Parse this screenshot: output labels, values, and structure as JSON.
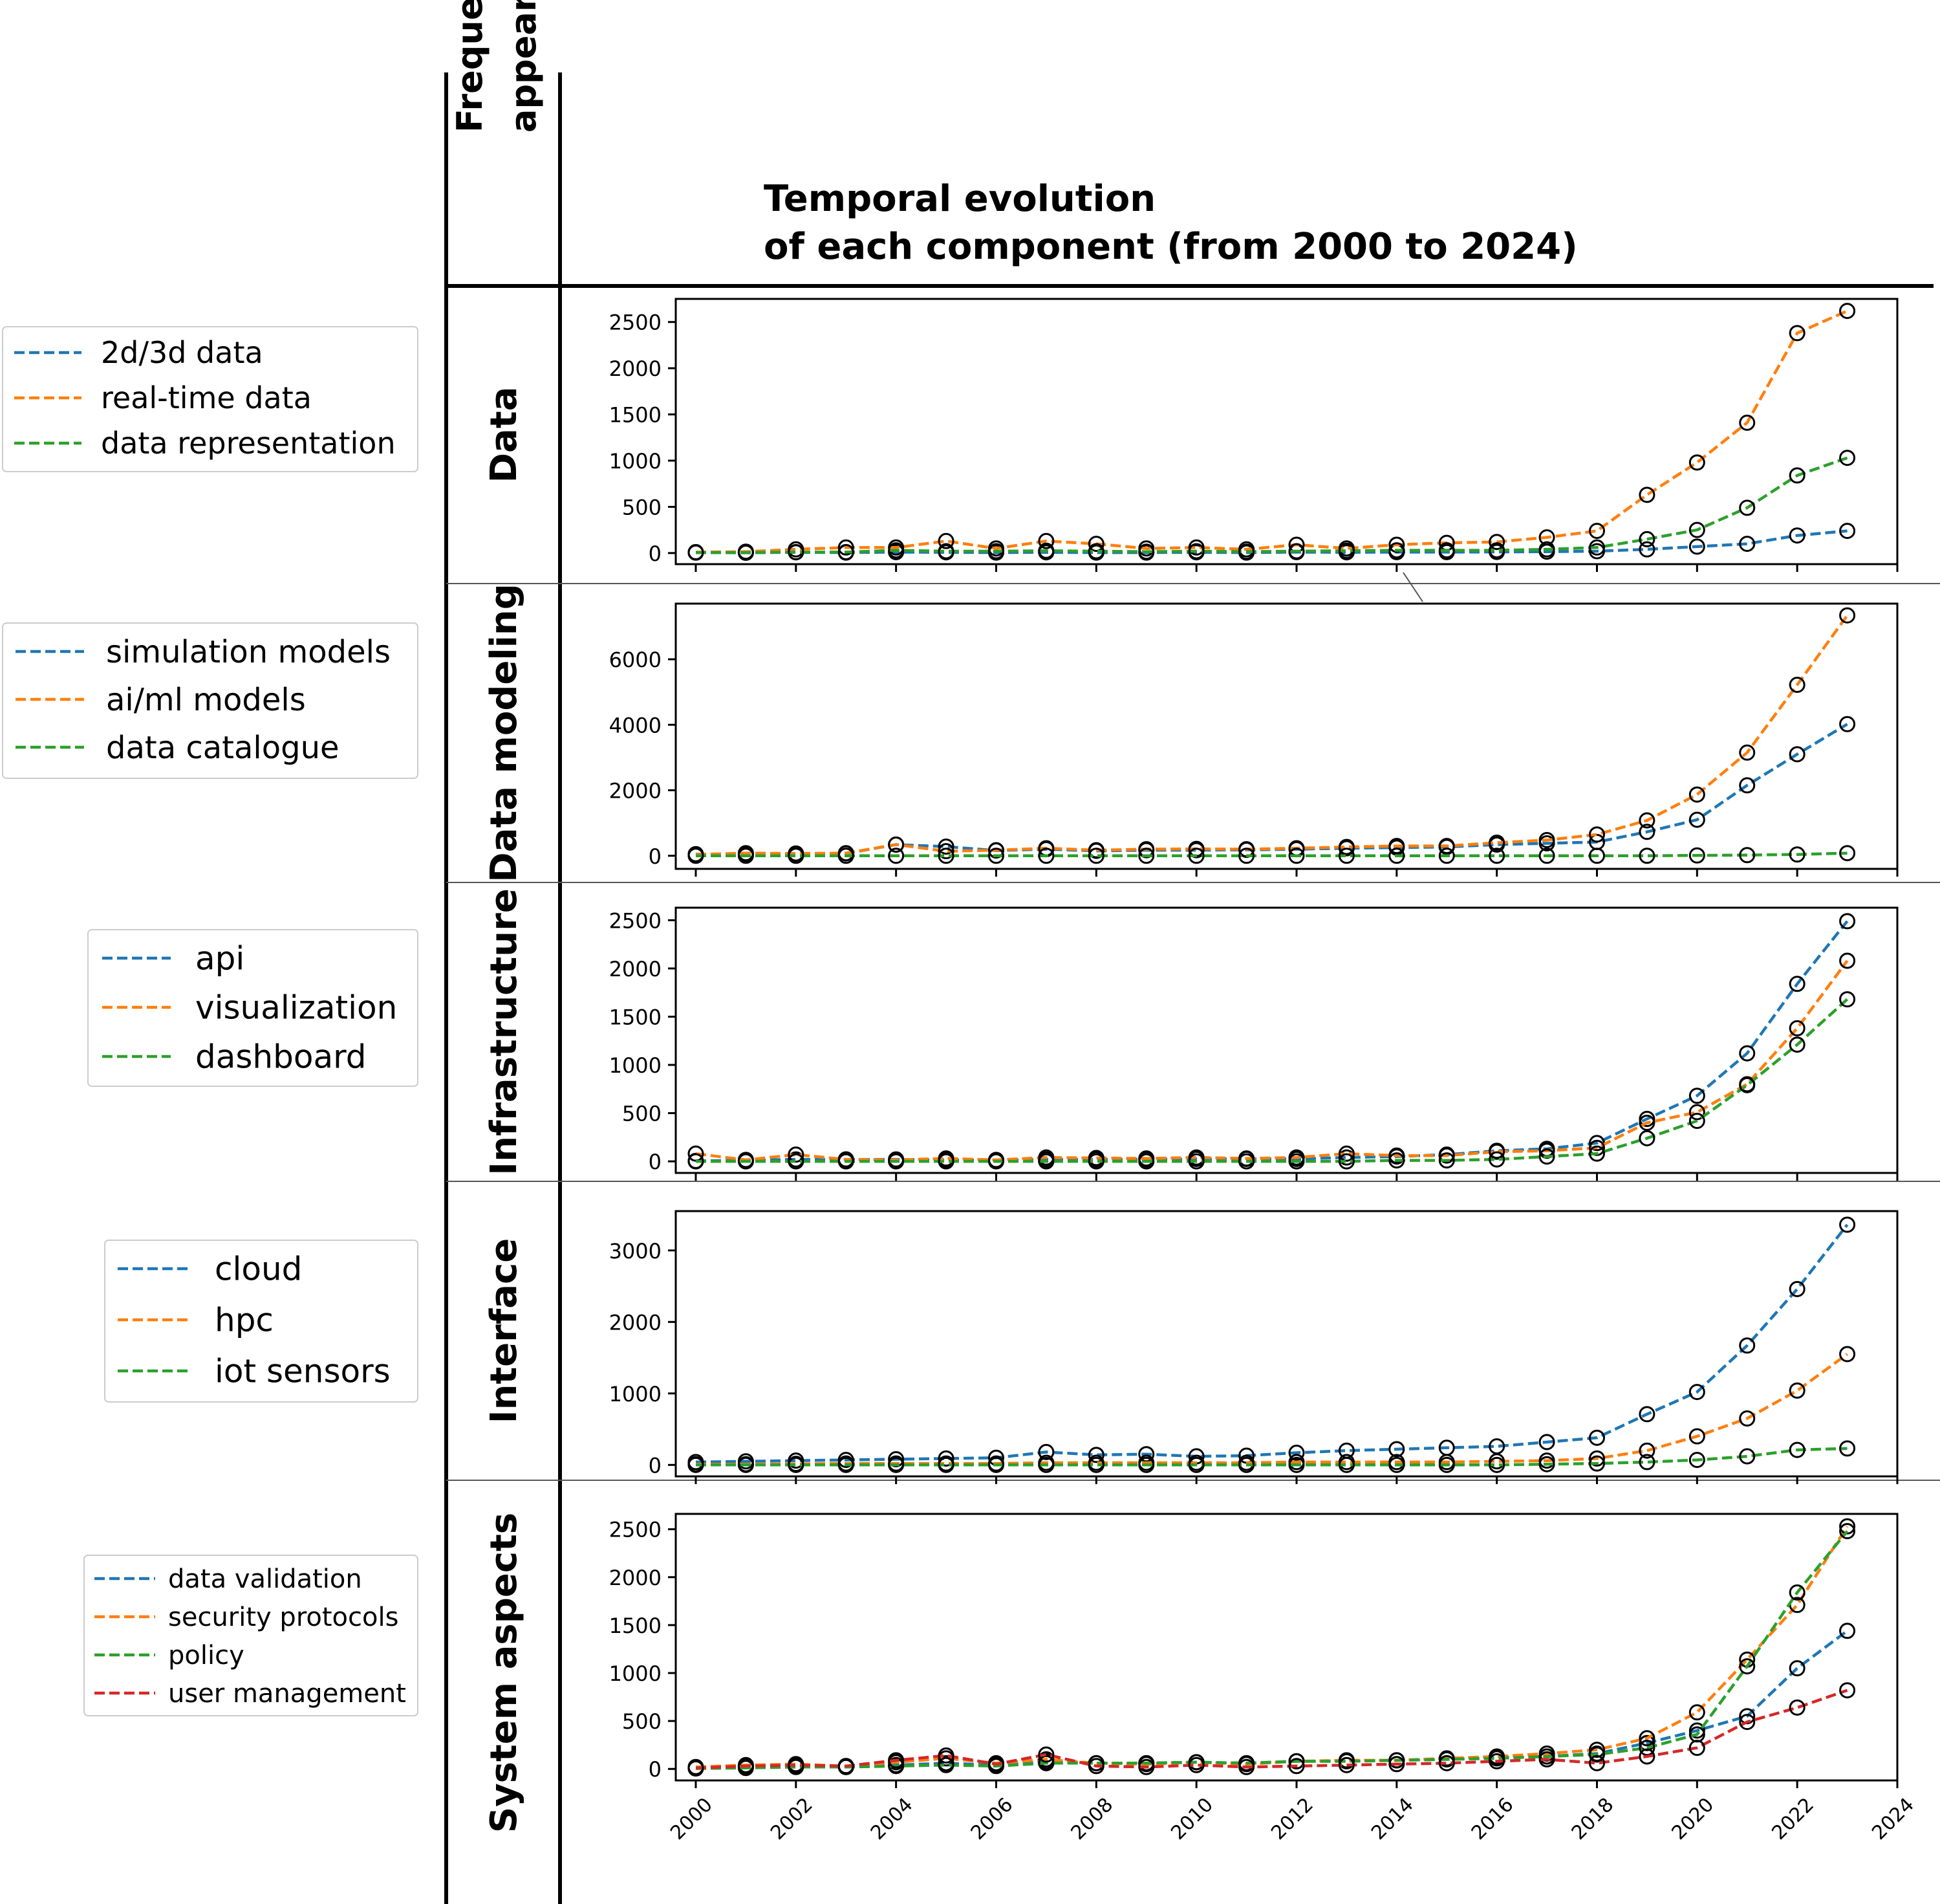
{
  "header": {
    "freq_line1": "Frequency of",
    "freq_line2": "appearance",
    "title_line1": "Temporal evolution",
    "title_line2": "of each component (from 2000 to 2024)"
  },
  "colors": {
    "blue": "#1f77b4",
    "orange": "#ff7f0e",
    "green": "#2ca02c",
    "red": "#d62728",
    "marker": "#000000"
  },
  "x_ticks": [
    2000,
    2002,
    2004,
    2006,
    2008,
    2010,
    2012,
    2014,
    2016,
    2018,
    2020,
    2022,
    2024
  ],
  "chart_data": [
    {
      "type": "line",
      "row_label": "Data",
      "xlim": [
        1999.6,
        2024.0
      ],
      "ylim": [
        -120,
        2750
      ],
      "yticks": [
        0,
        500,
        1000,
        1500,
        2000,
        2500
      ],
      "x": [
        2000,
        2001,
        2002,
        2003,
        2004,
        2005,
        2006,
        2007,
        2008,
        2009,
        2010,
        2011,
        2012,
        2013,
        2014,
        2015,
        2016,
        2017,
        2018,
        2019,
        2020,
        2021,
        2022,
        2023
      ],
      "series": [
        {
          "name": "2d/3d data",
          "color": "blue",
          "values": [
            5,
            3,
            8,
            5,
            10,
            8,
            5,
            8,
            5,
            5,
            8,
            5,
            10,
            8,
            10,
            10,
            12,
            15,
            20,
            40,
            70,
            100,
            190,
            240
          ]
        },
        {
          "name": "real-time data",
          "color": "orange",
          "values": [
            10,
            15,
            40,
            60,
            60,
            130,
            50,
            130,
            100,
            50,
            60,
            40,
            90,
            50,
            90,
            110,
            120,
            170,
            240,
            630,
            980,
            1410,
            2380,
            2620
          ]
        },
        {
          "name": "data representation",
          "color": "green",
          "values": [
            5,
            5,
            10,
            10,
            30,
            20,
            20,
            25,
            20,
            15,
            20,
            15,
            20,
            25,
            30,
            30,
            30,
            40,
            60,
            150,
            250,
            490,
            840,
            1030
          ]
        }
      ]
    },
    {
      "type": "line",
      "row_label": "Data modeling",
      "xlim": [
        1999.6,
        2024.0
      ],
      "ylim": [
        -400,
        7700
      ],
      "yticks": [
        0,
        2000,
        4000,
        6000
      ],
      "x": [
        2000,
        2001,
        2002,
        2003,
        2004,
        2005,
        2006,
        2007,
        2008,
        2009,
        2010,
        2011,
        2012,
        2013,
        2014,
        2015,
        2016,
        2017,
        2018,
        2019,
        2020,
        2021,
        2022,
        2023
      ],
      "series": [
        {
          "name": "simulation models",
          "color": "blue",
          "values": [
            50,
            50,
            60,
            70,
            340,
            280,
            160,
            200,
            150,
            170,
            170,
            180,
            200,
            230,
            250,
            270,
            340,
            380,
            420,
            730,
            1100,
            2150,
            3100,
            4020
          ]
        },
        {
          "name": "ai/ml models",
          "color": "orange",
          "values": [
            40,
            80,
            70,
            80,
            340,
            140,
            170,
            230,
            170,
            200,
            210,
            200,
            230,
            270,
            300,
            300,
            400,
            480,
            650,
            1080,
            1870,
            3150,
            5220,
            7340
          ]
        },
        {
          "name": "data catalogue",
          "color": "green",
          "values": [
            0,
            0,
            0,
            0,
            0,
            0,
            0,
            0,
            0,
            0,
            0,
            0,
            0,
            0,
            0,
            0,
            0,
            0,
            0,
            0,
            10,
            20,
            40,
            80
          ]
        }
      ]
    },
    {
      "type": "line",
      "row_label": "Infrastructure",
      "xlim": [
        1999.6,
        2024.0
      ],
      "ylim": [
        -120,
        2630
      ],
      "yticks": [
        0,
        500,
        1000,
        1500,
        2000,
        2500
      ],
      "x": [
        2000,
        2001,
        2002,
        2003,
        2004,
        2005,
        2006,
        2007,
        2008,
        2009,
        2010,
        2011,
        2012,
        2013,
        2014,
        2015,
        2016,
        2017,
        2018,
        2019,
        2020,
        2021,
        2022,
        2023
      ],
      "series": [
        {
          "name": "api",
          "color": "blue",
          "values": [
            5,
            10,
            20,
            20,
            20,
            15,
            10,
            20,
            20,
            20,
            25,
            25,
            25,
            40,
            50,
            70,
            110,
            130,
            190,
            440,
            680,
            1120,
            1840,
            2490
          ]
        },
        {
          "name": "visualization",
          "color": "orange",
          "values": [
            80,
            15,
            70,
            20,
            15,
            30,
            15,
            40,
            35,
            30,
            40,
            30,
            40,
            80,
            60,
            60,
            100,
            110,
            140,
            400,
            510,
            800,
            1380,
            2080
          ]
        },
        {
          "name": "dashboard",
          "color": "green",
          "values": [
            0,
            0,
            0,
            0,
            0,
            0,
            0,
            0,
            0,
            0,
            0,
            0,
            0,
            0,
            10,
            10,
            20,
            50,
            80,
            240,
            420,
            790,
            1210,
            1680
          ]
        }
      ]
    },
    {
      "type": "line",
      "row_label": "Interface",
      "xlim": [
        1999.6,
        2024.0
      ],
      "ylim": [
        -160,
        3550
      ],
      "yticks": [
        0,
        1000,
        2000,
        3000
      ],
      "x": [
        2000,
        2001,
        2002,
        2003,
        2004,
        2005,
        2006,
        2007,
        2008,
        2009,
        2010,
        2011,
        2012,
        2013,
        2014,
        2015,
        2016,
        2017,
        2018,
        2019,
        2020,
        2021,
        2022,
        2023
      ],
      "series": [
        {
          "name": "cloud",
          "color": "blue",
          "values": [
            40,
            50,
            60,
            70,
            80,
            90,
            100,
            180,
            140,
            150,
            120,
            130,
            170,
            200,
            220,
            240,
            260,
            320,
            380,
            710,
            1020,
            1670,
            2460,
            3360
          ]
        },
        {
          "name": "hpc",
          "color": "orange",
          "values": [
            10,
            10,
            15,
            20,
            20,
            20,
            20,
            30,
            30,
            30,
            30,
            30,
            40,
            40,
            40,
            40,
            50,
            60,
            90,
            200,
            400,
            650,
            1040,
            1550
          ]
        },
        {
          "name": "iot sensors",
          "color": "green",
          "values": [
            0,
            0,
            0,
            0,
            0,
            0,
            0,
            0,
            0,
            0,
            0,
            0,
            0,
            0,
            0,
            0,
            0,
            10,
            20,
            40,
            70,
            120,
            210,
            230
          ]
        }
      ]
    },
    {
      "type": "line",
      "row_label": "System aspects",
      "xlim": [
        1999.6,
        2024.0
      ],
      "ylim": [
        -120,
        2660
      ],
      "yticks": [
        0,
        500,
        1000,
        1500,
        2000,
        2500
      ],
      "x": [
        2000,
        2001,
        2002,
        2003,
        2004,
        2005,
        2006,
        2007,
        2008,
        2009,
        2010,
        2011,
        2012,
        2013,
        2014,
        2015,
        2016,
        2017,
        2018,
        2019,
        2020,
        2021,
        2022,
        2023
      ],
      "series": [
        {
          "name": "data validation",
          "color": "blue",
          "values": [
            10,
            20,
            30,
            20,
            40,
            60,
            40,
            80,
            60,
            60,
            70,
            60,
            80,
            80,
            90,
            100,
            120,
            130,
            160,
            270,
            400,
            550,
            1050,
            1440
          ]
        },
        {
          "name": "security protocols",
          "color": "orange",
          "values": [
            20,
            40,
            50,
            30,
            70,
            110,
            60,
            100,
            60,
            50,
            70,
            50,
            80,
            90,
            90,
            110,
            130,
            160,
            200,
            320,
            590,
            1140,
            1710,
            2530
          ]
        },
        {
          "name": "policy",
          "color": "green",
          "values": [
            5,
            10,
            20,
            20,
            30,
            40,
            30,
            60,
            60,
            60,
            70,
            60,
            80,
            80,
            90,
            100,
            110,
            130,
            150,
            220,
            360,
            1070,
            1840,
            2480
          ]
        },
        {
          "name": "user management",
          "color": "red",
          "values": [
            10,
            30,
            40,
            30,
            90,
            140,
            50,
            150,
            30,
            20,
            40,
            20,
            30,
            40,
            50,
            60,
            80,
            100,
            60,
            130,
            220,
            490,
            640,
            820
          ]
        }
      ]
    }
  ]
}
